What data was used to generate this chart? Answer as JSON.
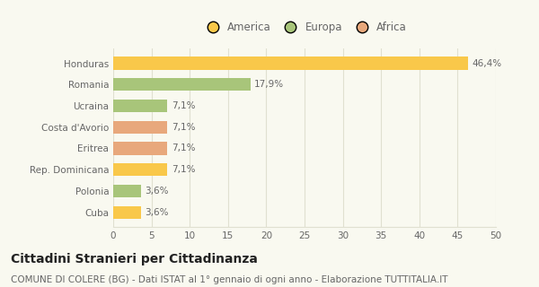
{
  "categories": [
    "Cuba",
    "Polonia",
    "Rep. Dominicana",
    "Eritrea",
    "Costa d'Avorio",
    "Ucraina",
    "Romania",
    "Honduras"
  ],
  "values": [
    3.6,
    3.6,
    7.1,
    7.1,
    7.1,
    7.1,
    17.9,
    46.4
  ],
  "colors": [
    "#f9c84a",
    "#a8c57a",
    "#f9c84a",
    "#e8a87c",
    "#e8a87c",
    "#a8c57a",
    "#a8c57a",
    "#f9c84a"
  ],
  "labels": [
    "3,6%",
    "3,6%",
    "7,1%",
    "7,1%",
    "7,1%",
    "7,1%",
    "17,9%",
    "46,4%"
  ],
  "legend": [
    {
      "label": "America",
      "color": "#f9c84a"
    },
    {
      "label": "Europa",
      "color": "#a8c57a"
    },
    {
      "label": "Africa",
      "color": "#e8a87c"
    }
  ],
  "xlim": [
    0,
    50
  ],
  "xticks": [
    0,
    5,
    10,
    15,
    20,
    25,
    30,
    35,
    40,
    45,
    50
  ],
  "title": "Cittadini Stranieri per Cittadinanza",
  "subtitle": "COMUNE DI COLERE (BG) - Dati ISTAT al 1° gennaio di ogni anno - Elaborazione TUTTITALIA.IT",
  "background_color": "#f9f9f0",
  "grid_color": "#e0e0d0",
  "bar_height": 0.6,
  "title_fontsize": 10,
  "subtitle_fontsize": 7.5,
  "label_fontsize": 7.5,
  "tick_fontsize": 7.5,
  "legend_fontsize": 8.5
}
